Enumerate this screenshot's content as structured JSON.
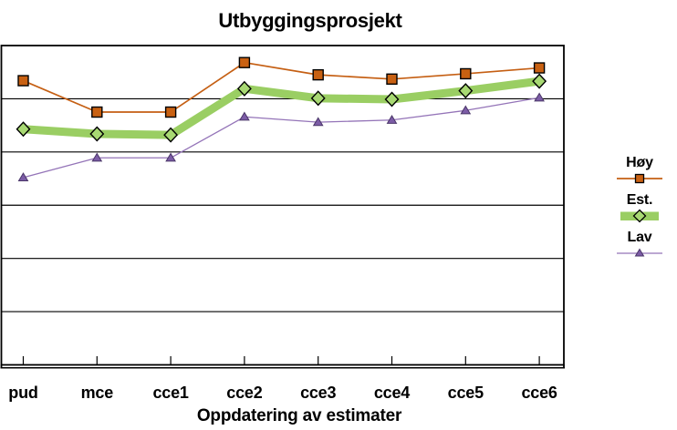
{
  "chart_data": {
    "type": "line",
    "title": "Utbyggingsprosjekt",
    "xlabel": "Oppdatering av estimater",
    "ylabel": "",
    "categories": [
      "pud",
      "mce",
      "cce1",
      "cce2",
      "cce3",
      "cce4",
      "cce5",
      "cce6"
    ],
    "series": [
      {
        "key": "hoy",
        "name": "Høy",
        "marker": "square",
        "line_color": "#c55f13",
        "marker_fill": "#c96112",
        "marker_stroke": "#000000",
        "line_width": 1.7,
        "values": [
          5.34,
          4.75,
          4.75,
          5.68,
          5.45,
          5.37,
          5.47,
          5.58
        ]
      },
      {
        "key": "est",
        "name": "Est.",
        "marker": "diamond",
        "line_color": "#9ace63",
        "marker_fill": "#a8d973",
        "marker_stroke": "#000000",
        "line_width": 9,
        "values": [
          4.43,
          4.34,
          4.32,
          5.19,
          5.01,
          4.99,
          5.15,
          5.33
        ]
      },
      {
        "key": "lav",
        "name": "Lav",
        "marker": "triangle",
        "line_color": "#9474b8",
        "marker_fill": "#7c5ca6",
        "marker_stroke": "#4a3668",
        "line_width": 1.3,
        "values": [
          3.52,
          3.89,
          3.89,
          4.66,
          4.56,
          4.6,
          4.78,
          5.02
        ]
      }
    ],
    "ylim": [
      0,
      6
    ],
    "y_gridline_step": 1,
    "y_tick_labels_visible": false,
    "grid": "horizontal",
    "legend_position": "right",
    "axis_color": "#000000",
    "background_color": "#ffffff"
  }
}
